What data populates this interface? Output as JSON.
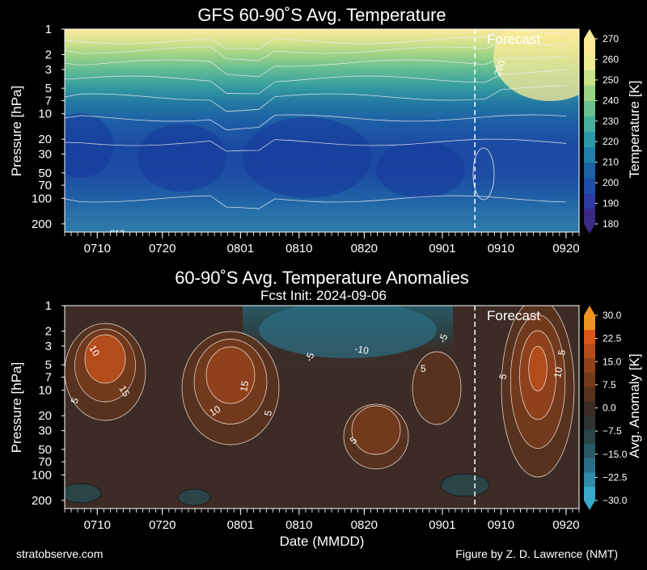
{
  "figure": {
    "footer_left": "stratobserve.com",
    "footer_right": "Figure by Z. D. Lawrence (NMT)",
    "shared_xlabel": "Date (MMDD)"
  },
  "chart_data": [
    {
      "type": "heatmap",
      "title": "GFS 60-90˚S Avg. Temperature",
      "ylabel": "Pressure [hPa]",
      "y_scale": "log",
      "y_reversed": true,
      "yticks": [
        "1",
        "2",
        "3",
        "5",
        "7",
        "10",
        "20",
        "30",
        "50",
        "70",
        "100",
        "200"
      ],
      "ytick_values": [
        1,
        2,
        3,
        5,
        7,
        10,
        20,
        30,
        50,
        70,
        100,
        200
      ],
      "ylim": [
        250,
        1
      ],
      "x_start": "0705",
      "x_end": "0922",
      "xticks": [
        "0710",
        "0720",
        "0801",
        "0810",
        "0820",
        "0901",
        "0910",
        "0920"
      ],
      "forecast_start": "0906",
      "forecast_label": "Forecast",
      "colorbar": {
        "label": "Temperature [K]",
        "ticks": [
          "180",
          "190",
          "200",
          "210",
          "220",
          "230",
          "240",
          "250",
          "260",
          "270"
        ],
        "range": [
          180,
          270
        ],
        "colors": [
          "#3a2a86",
          "#2d3a9e",
          "#1f4ea6",
          "#1b63a6",
          "#1f7fa8",
          "#2c98a8",
          "#47ae9e",
          "#6cc28f",
          "#9ad386",
          "#c8e28a",
          "#ecec93",
          "#fbe997"
        ]
      },
      "contour_labels": [
        "260",
        "210"
      ],
      "levels": {
        "pressure_hPa": [
          1,
          2,
          3,
          5,
          7,
          10,
          20,
          30,
          50,
          70,
          100,
          200
        ],
        "approx_temperature_K": [
          246,
          238,
          233,
          228,
          224,
          220,
          212,
          210,
          210,
          212,
          216,
          218
        ]
      }
    },
    {
      "type": "heatmap",
      "title": "60-90˚S Avg. Temperature Anomalies",
      "subtitle": "Fcst Init: 2024-09-06",
      "ylabel": "Pressure [hPa]",
      "y_scale": "log",
      "y_reversed": true,
      "yticks": [
        "1",
        "2",
        "3",
        "5",
        "7",
        "10",
        "20",
        "30",
        "50",
        "70",
        "100",
        "200"
      ],
      "ytick_values": [
        1,
        2,
        3,
        5,
        7,
        10,
        20,
        30,
        50,
        70,
        100,
        200
      ],
      "ylim": [
        250,
        1
      ],
      "x_start": "0705",
      "x_end": "0922",
      "xticks": [
        "0710",
        "0720",
        "0801",
        "0810",
        "0820",
        "0901",
        "0910",
        "0920"
      ],
      "xlabel": "Date (MMDD)",
      "forecast_start": "0906",
      "forecast_label": "Forecast",
      "colorbar": {
        "label": "Avg. Anomaly [K]",
        "ticks": [
          "30.0",
          "22.5",
          "15.0",
          "7.5",
          "0.0",
          "−7.5",
          "−15.0",
          "−22.5",
          "−30.0"
        ],
        "range": [
          -30,
          30
        ],
        "colors": [
          "#3aa8c8",
          "#2f8aa6",
          "#2b6f84",
          "#2a5866",
          "#2a4448",
          "#2f3332",
          "#3d2c26",
          "#56321f",
          "#73391d",
          "#8f411b",
          "#b34b1a",
          "#d8561a",
          "#f09220"
        ]
      },
      "contour_labels": [
        "10",
        "15",
        "5",
        "10",
        "15",
        "5",
        "5",
        "-5",
        "-10",
        "5",
        "-5",
        "5",
        "10",
        "5"
      ],
      "features": [
        {
          "name": "warm anomaly early July",
          "date": "0713",
          "pressure_hPa": 7,
          "peak_K": 15
        },
        {
          "name": "warm anomaly early August",
          "date": "0803",
          "pressure_hPa": 10,
          "peak_K": 15
        },
        {
          "name": "cold anomaly mid August",
          "date": "0820",
          "pressure_hPa": 2,
          "peak_K": -10
        },
        {
          "name": "warm anomaly forecast",
          "date": "0916",
          "pressure_hPa": 5,
          "peak_K": 15
        }
      ]
    }
  ]
}
